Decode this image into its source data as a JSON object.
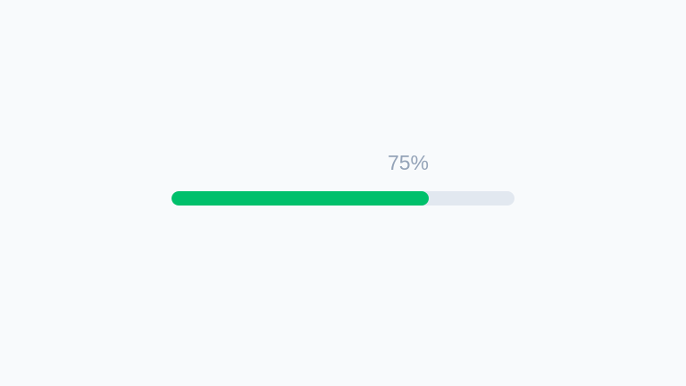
{
  "progress": {
    "value_percent": 75,
    "label": "75%",
    "fill_color": "#00c06b",
    "track_color": "#e2e8f0",
    "label_color": "#94a3b8"
  }
}
